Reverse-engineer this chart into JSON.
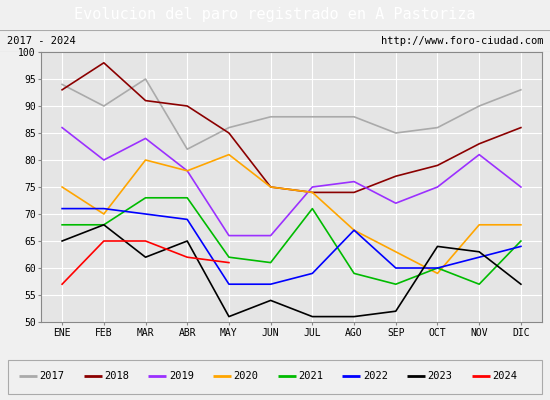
{
  "title": "Evolucion del paro registrado en A Pastoriza",
  "subtitle_left": "2017 - 2024",
  "subtitle_right": "http://www.foro-ciudad.com",
  "months": [
    "ENE",
    "FEB",
    "MAR",
    "ABR",
    "MAY",
    "JUN",
    "JUL",
    "AGO",
    "SEP",
    "OCT",
    "NOV",
    "DIC"
  ],
  "ylim": [
    50,
    100
  ],
  "yticks": [
    50,
    55,
    60,
    65,
    70,
    75,
    80,
    85,
    90,
    95,
    100
  ],
  "series": {
    "2017": {
      "color": "#aaaaaa",
      "values": [
        94,
        90,
        95,
        82,
        86,
        88,
        88,
        88,
        85,
        86,
        90,
        93
      ]
    },
    "2018": {
      "color": "#8b0000",
      "values": [
        93,
        98,
        91,
        90,
        85,
        75,
        74,
        74,
        77,
        79,
        83,
        86
      ]
    },
    "2019": {
      "color": "#9b30ff",
      "values": [
        86,
        80,
        84,
        78,
        66,
        66,
        75,
        76,
        72,
        75,
        81,
        75
      ]
    },
    "2020": {
      "color": "#ffa500",
      "values": [
        75,
        70,
        80,
        78,
        81,
        75,
        74,
        67,
        63,
        59,
        68,
        68
      ]
    },
    "2021": {
      "color": "#00bb00",
      "values": [
        68,
        68,
        73,
        73,
        62,
        61,
        71,
        59,
        57,
        60,
        57,
        65
      ]
    },
    "2022": {
      "color": "#0000ff",
      "values": [
        71,
        71,
        70,
        69,
        57,
        57,
        59,
        67,
        60,
        60,
        62,
        64
      ]
    },
    "2023": {
      "color": "#000000",
      "values": [
        65,
        68,
        62,
        65,
        51,
        54,
        51,
        51,
        52,
        64,
        63,
        57
      ]
    },
    "2024": {
      "color": "#ff0000",
      "values": [
        57,
        65,
        65,
        62,
        61,
        null,
        null,
        null,
        null,
        null,
        null,
        null
      ]
    }
  },
  "background_color": "#f0f0f0",
  "plot_bg_color": "#e5e5e5",
  "title_bg_color": "#5b8dd9",
  "title_color": "#ffffff",
  "subtitle_bg_color": "#d8d8d8",
  "grid_color": "#ffffff",
  "title_fontsize": 11,
  "subtitle_fontsize": 7.5,
  "tick_fontsize": 7,
  "legend_fontsize": 7.5
}
